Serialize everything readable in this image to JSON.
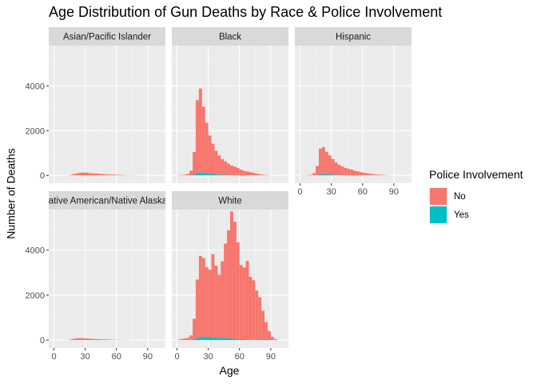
{
  "chart_data": {
    "type": "histogram-facet",
    "title": "Age Distribution of Gun Deaths by Race & Police Involvement",
    "xlabel": "Age",
    "ylabel": "Number of Deaths",
    "xlim": [
      -5,
      107
    ],
    "ylim": [
      -350,
      5800
    ],
    "x_ticks": [
      0,
      30,
      60,
      90
    ],
    "y_ticks": [
      0,
      2000,
      4000
    ],
    "bin_width": 3,
    "bin_starts": [
      0,
      3,
      6,
      9,
      12,
      15,
      18,
      21,
      24,
      27,
      30,
      33,
      36,
      39,
      42,
      45,
      48,
      51,
      54,
      57,
      60,
      63,
      66,
      69,
      72,
      75,
      78,
      81,
      84,
      87,
      90,
      93,
      96,
      99,
      102
    ],
    "legend": {
      "title": "Police Involvement",
      "placement": "right",
      "entries": [
        {
          "label": "No",
          "color": "#F8766D"
        },
        {
          "label": "Yes",
          "color": "#00BFC4"
        }
      ]
    },
    "panels": [
      {
        "label": "Asian/Pacific Islander",
        "no": [
          0,
          0,
          0,
          0,
          5,
          25,
          60,
          85,
          110,
          120,
          115,
          95,
          85,
          80,
          70,
          60,
          50,
          40,
          40,
          30,
          25,
          20,
          15,
          10,
          8,
          5,
          3,
          2,
          0,
          0,
          0,
          0,
          0,
          0,
          0
        ],
        "yes": [
          0,
          0,
          0,
          0,
          0,
          0,
          5,
          5,
          8,
          8,
          7,
          5,
          4,
          3,
          3,
          2,
          2,
          1,
          1,
          1,
          0,
          0,
          0,
          0,
          0,
          0,
          0,
          0,
          0,
          0,
          0,
          0,
          0,
          0,
          0
        ]
      },
      {
        "label": "Black",
        "no": [
          10,
          20,
          30,
          60,
          200,
          1000,
          3250,
          3750,
          2950,
          2250,
          1700,
          1350,
          1050,
          850,
          700,
          600,
          500,
          420,
          380,
          320,
          250,
          200,
          170,
          140,
          110,
          80,
          50,
          30,
          15,
          8,
          0,
          0,
          0,
          0,
          0
        ],
        "yes": [
          0,
          0,
          0,
          0,
          5,
          40,
          110,
          130,
          120,
          100,
          80,
          65,
          50,
          40,
          30,
          25,
          20,
          15,
          12,
          10,
          8,
          5,
          3,
          2,
          2,
          1,
          1,
          0,
          0,
          0,
          0,
          0,
          0,
          0,
          0
        ]
      },
      {
        "label": "Hispanic",
        "no": [
          5,
          10,
          15,
          30,
          100,
          400,
          1150,
          1200,
          1000,
          850,
          700,
          550,
          450,
          380,
          320,
          280,
          250,
          200,
          170,
          140,
          110,
          90,
          70,
          55,
          40,
          30,
          20,
          10,
          5,
          3,
          0,
          0,
          0,
          0,
          0
        ],
        "yes": [
          0,
          0,
          0,
          0,
          3,
          20,
          50,
          60,
          55,
          45,
          35,
          28,
          22,
          18,
          15,
          12,
          10,
          8,
          6,
          5,
          4,
          3,
          2,
          1,
          1,
          0,
          0,
          0,
          0,
          0,
          0,
          0,
          0,
          0,
          0
        ]
      },
      {
        "label": "Native American/Native Alaskan",
        "no": [
          0,
          0,
          0,
          0,
          5,
          30,
          60,
          80,
          85,
          80,
          70,
          60,
          50,
          45,
          40,
          35,
          30,
          25,
          20,
          15,
          12,
          10,
          8,
          5,
          3,
          2,
          0,
          0,
          0,
          0,
          0,
          0,
          0,
          0,
          0
        ],
        "yes": [
          0,
          0,
          0,
          0,
          0,
          2,
          5,
          7,
          6,
          5,
          4,
          3,
          3,
          2,
          2,
          1,
          1,
          1,
          0,
          0,
          0,
          0,
          0,
          0,
          0,
          0,
          0,
          0,
          0,
          0,
          0,
          0,
          0,
          0,
          0
        ]
      },
      {
        "label": "White",
        "no": [
          20,
          50,
          80,
          100,
          200,
          900,
          2600,
          3600,
          3500,
          3100,
          3000,
          3700,
          3200,
          2800,
          3400,
          4200,
          4800,
          5650,
          5200,
          4300,
          3300,
          3200,
          3500,
          2800,
          2650,
          2200,
          1900,
          1300,
          800,
          400,
          150,
          50,
          0,
          0,
          0
        ],
        "yes": [
          0,
          0,
          0,
          0,
          10,
          50,
          90,
          140,
          150,
          140,
          130,
          120,
          110,
          100,
          100,
          90,
          80,
          70,
          60,
          50,
          40,
          30,
          20,
          15,
          10,
          5,
          2,
          1,
          0,
          0,
          0,
          0,
          0,
          0,
          0
        ]
      }
    ]
  }
}
